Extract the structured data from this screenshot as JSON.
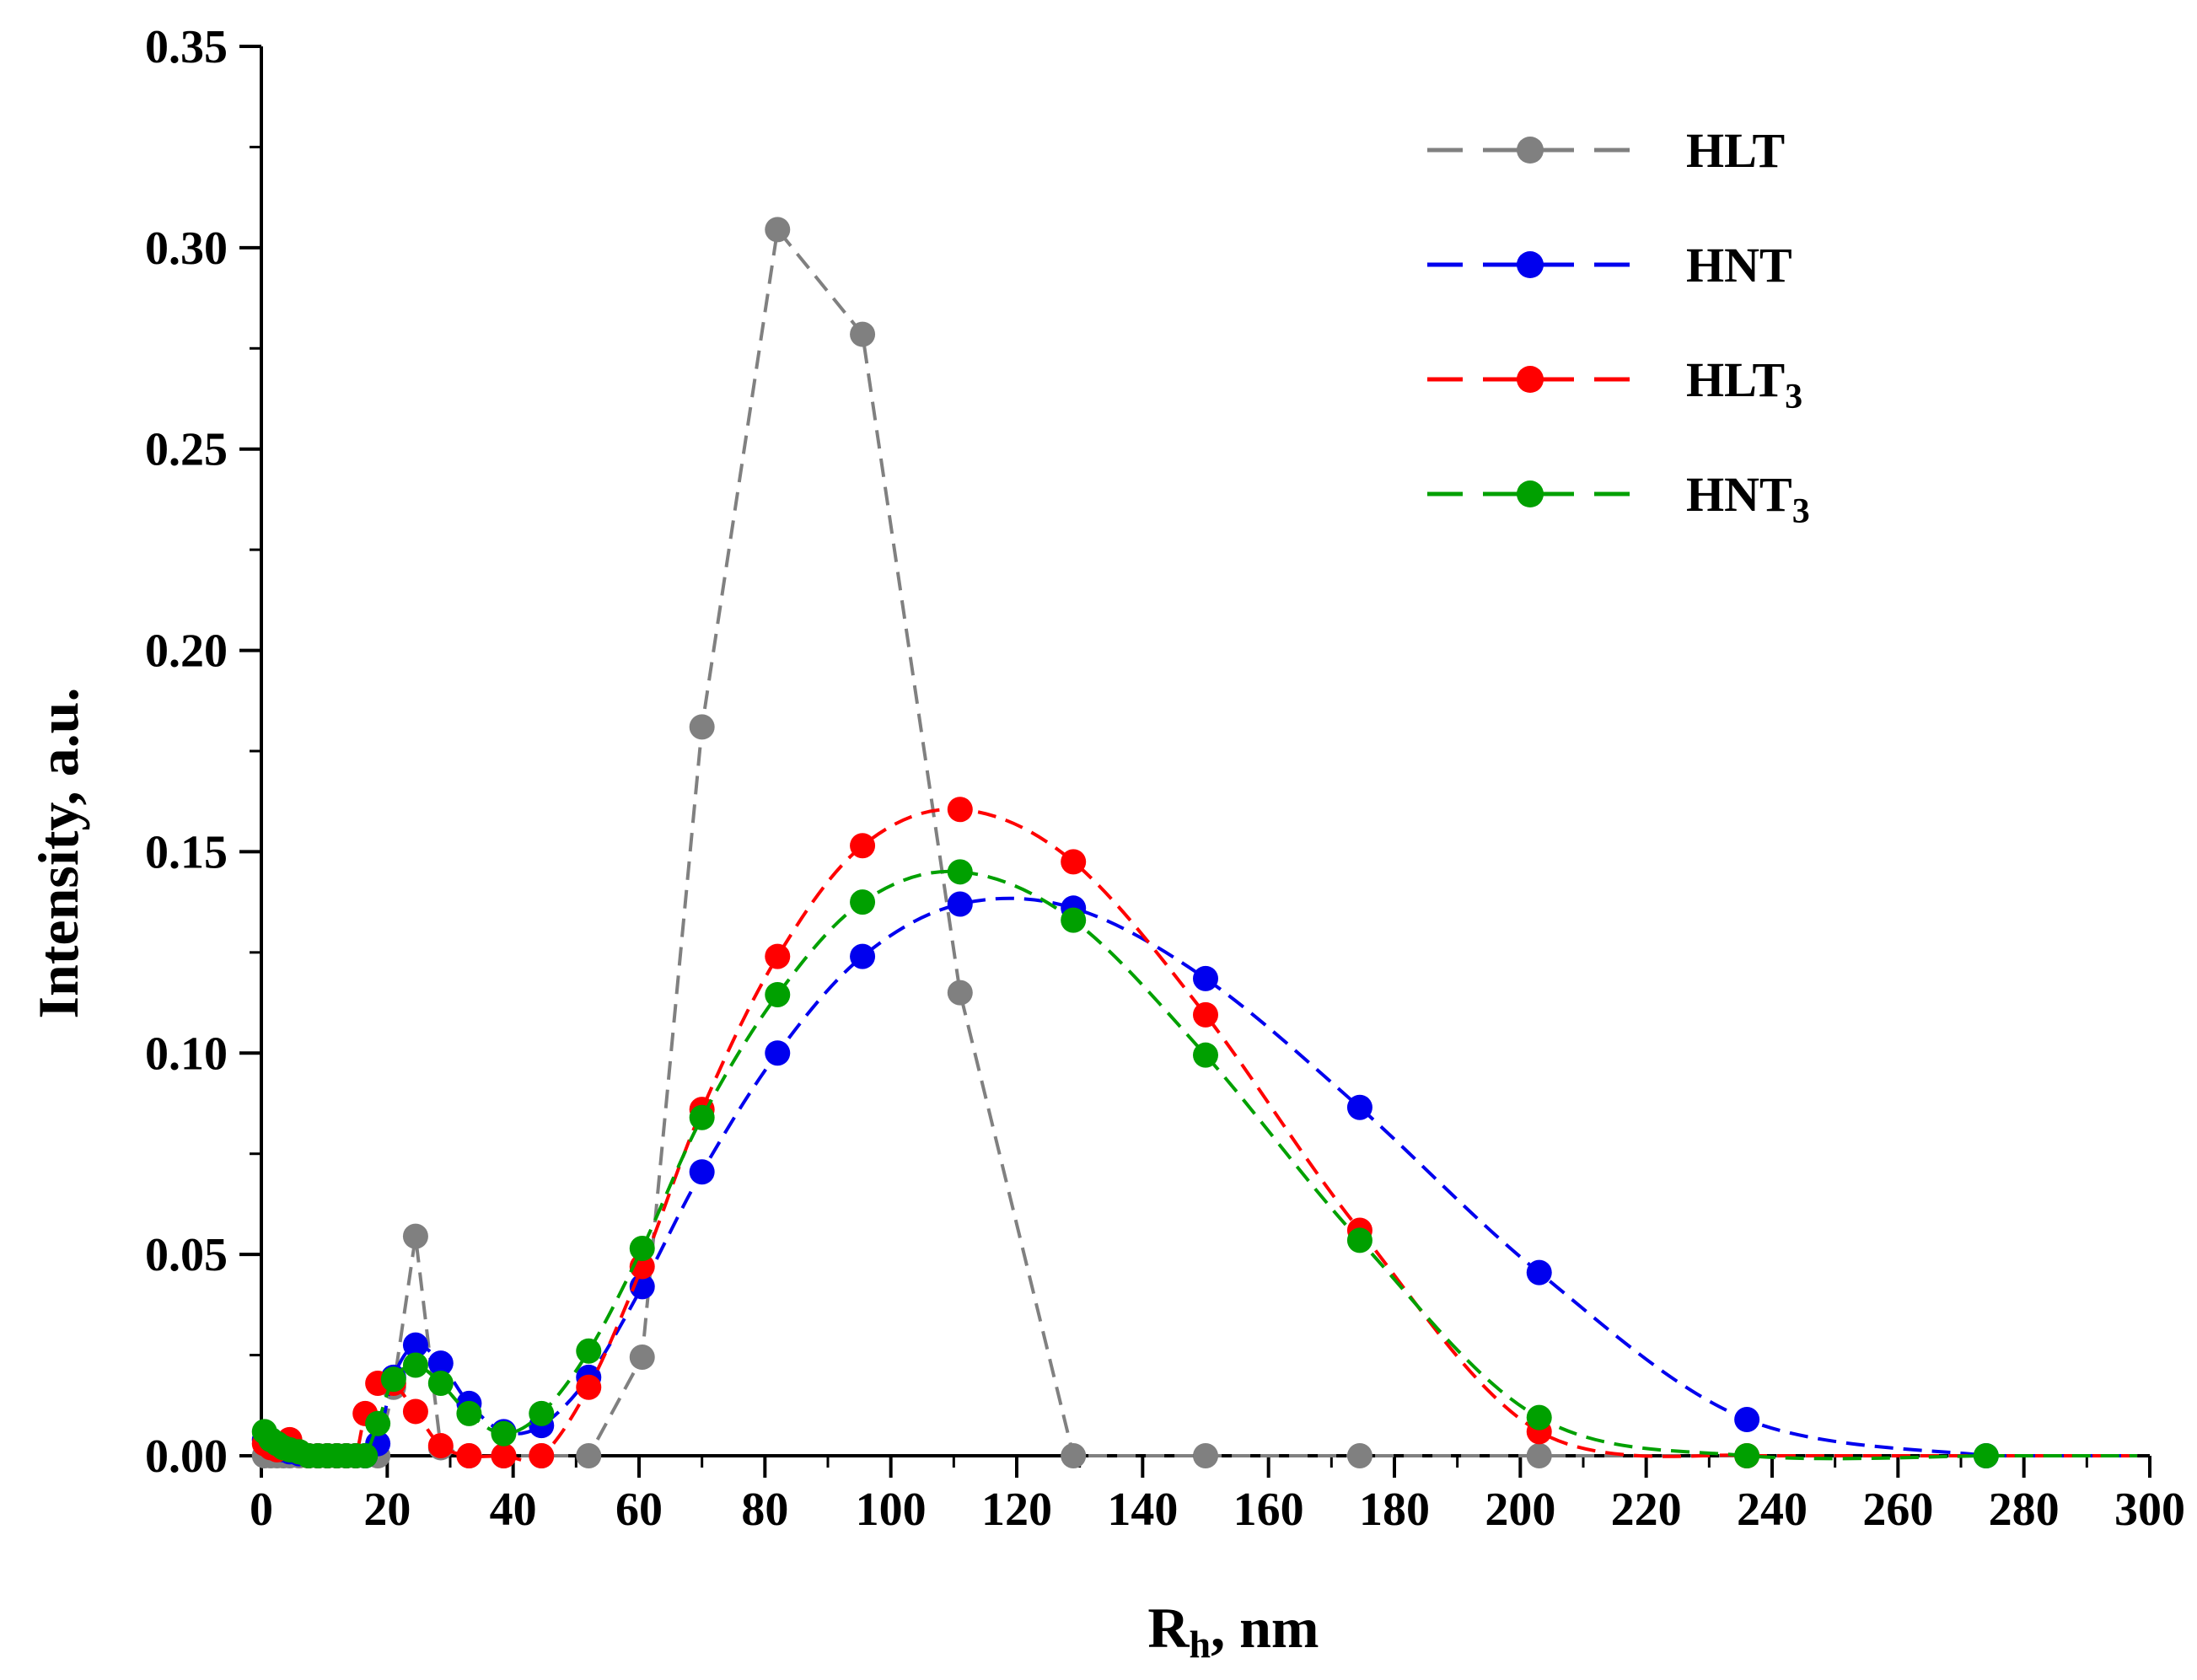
{
  "chart_data": {
    "type": "line",
    "xlabel_main": "R",
    "xlabel_sub": "h",
    "xlabel_rest": ", nm",
    "ylabel": "Intensity, a.u.",
    "xlim": [
      0,
      300
    ],
    "ylim": [
      0,
      0.35
    ],
    "x_ticks": [
      0,
      20,
      40,
      60,
      80,
      100,
      120,
      140,
      160,
      180,
      200,
      220,
      240,
      260,
      280,
      300
    ],
    "y_ticks": [
      "0.00",
      "0.05",
      "0.10",
      "0.15",
      "0.20",
      "0.25",
      "0.30",
      "0.35"
    ],
    "grid": false,
    "legend_position": "top-right",
    "series": [
      {
        "name": "HLT",
        "name_main": "HLT",
        "name_sub": "",
        "color": "#808080",
        "points": [
          [
            0.5,
            0
          ],
          [
            1.5,
            0
          ],
          [
            2.5,
            0
          ],
          [
            3.5,
            0
          ],
          [
            4.5,
            0
          ],
          [
            6,
            0
          ],
          [
            7.5,
            0
          ],
          [
            9,
            0
          ],
          [
            10.5,
            0
          ],
          [
            12,
            0
          ],
          [
            13.5,
            0
          ],
          [
            15,
            0
          ],
          [
            16.5,
            0
          ],
          [
            18.5,
            0
          ],
          [
            21,
            0.017
          ],
          [
            24.5,
            0.0545
          ],
          [
            28.5,
            0.002
          ],
          [
            33,
            0
          ],
          [
            38.5,
            0
          ],
          [
            44.5,
            0
          ],
          [
            52,
            0
          ],
          [
            60.5,
            0.0245
          ],
          [
            70,
            0.181
          ],
          [
            82,
            0.3045
          ],
          [
            95.5,
            0.2785
          ],
          [
            111,
            0.115
          ],
          [
            129,
            0
          ],
          [
            150,
            0
          ],
          [
            174.5,
            0
          ],
          [
            203,
            0
          ]
        ]
      },
      {
        "name": "HNT",
        "name_main": "HNT",
        "name_sub": "",
        "color": "#0000ee",
        "points": [
          [
            0.5,
            0.004
          ],
          [
            1.5,
            0.003
          ],
          [
            2.5,
            0.002
          ],
          [
            3.5,
            0.0015
          ],
          [
            4.5,
            0.001
          ],
          [
            6,
            0.0005
          ],
          [
            7.5,
            0
          ],
          [
            9,
            0
          ],
          [
            10.5,
            0
          ],
          [
            12,
            0
          ],
          [
            13.5,
            0
          ],
          [
            15,
            0
          ],
          [
            16.5,
            0
          ],
          [
            18.5,
            0.003
          ],
          [
            21,
            0.0195
          ],
          [
            24.5,
            0.0275
          ],
          [
            28.5,
            0.023
          ],
          [
            33,
            0.013
          ],
          [
            38.5,
            0.006
          ],
          [
            44.5,
            0.0075
          ],
          [
            52,
            0.0195
          ],
          [
            60.5,
            0.042
          ],
          [
            70,
            0.0705
          ],
          [
            82,
            0.1
          ],
          [
            95.5,
            0.124
          ],
          [
            111,
            0.137
          ],
          [
            129,
            0.136
          ],
          [
            150,
            0.1185
          ],
          [
            174.5,
            0.0865
          ],
          [
            203,
            0.0455
          ],
          [
            236,
            0.009
          ],
          [
            274,
            0
          ]
        ]
      },
      {
        "name": "HLT3",
        "name_main": "HLT",
        "name_sub": "3",
        "color": "#ff0000",
        "points": [
          [
            0.5,
            0.003
          ],
          [
            1.5,
            0.002
          ],
          [
            2.5,
            0.0015
          ],
          [
            3.5,
            0.002
          ],
          [
            4.5,
            0.004
          ],
          [
            6,
            0.001
          ],
          [
            7.5,
            0
          ],
          [
            9,
            0
          ],
          [
            10.5,
            0
          ],
          [
            12,
            0
          ],
          [
            13.5,
            0
          ],
          [
            15,
            0
          ],
          [
            16.5,
            0.0105
          ],
          [
            18.5,
            0.018
          ],
          [
            21,
            0.018
          ],
          [
            24.5,
            0.011
          ],
          [
            28.5,
            0.0025
          ],
          [
            33,
            0
          ],
          [
            38.5,
            0
          ],
          [
            44.5,
            0
          ],
          [
            52,
            0.017
          ],
          [
            60.5,
            0.047
          ],
          [
            70,
            0.086
          ],
          [
            82,
            0.124
          ],
          [
            95.5,
            0.1515
          ],
          [
            111,
            0.1605
          ],
          [
            129,
            0.1475
          ],
          [
            150,
            0.1095
          ],
          [
            174.5,
            0.056
          ],
          [
            203,
            0.006
          ],
          [
            236,
            0
          ]
        ]
      },
      {
        "name": "HNT3",
        "name_main": "HNT",
        "name_sub": "3",
        "color": "#00a000",
        "points": [
          [
            0.5,
            0.006
          ],
          [
            1.5,
            0.004
          ],
          [
            2.5,
            0.003
          ],
          [
            3.5,
            0.002
          ],
          [
            4.5,
            0.0015
          ],
          [
            6,
            0.001
          ],
          [
            7.5,
            0
          ],
          [
            9,
            0
          ],
          [
            10.5,
            0
          ],
          [
            12,
            0
          ],
          [
            13.5,
            0
          ],
          [
            15,
            0
          ],
          [
            16.5,
            0
          ],
          [
            18.5,
            0.008
          ],
          [
            21,
            0.019
          ],
          [
            24.5,
            0.0225
          ],
          [
            28.5,
            0.018
          ],
          [
            33,
            0.0105
          ],
          [
            38.5,
            0.0055
          ],
          [
            44.5,
            0.0105
          ],
          [
            52,
            0.026
          ],
          [
            60.5,
            0.0515
          ],
          [
            70,
            0.084
          ],
          [
            82,
            0.1145
          ],
          [
            95.5,
            0.1375
          ],
          [
            111,
            0.145
          ],
          [
            129,
            0.133
          ],
          [
            150,
            0.0995
          ],
          [
            174.5,
            0.0535
          ],
          [
            203,
            0.0095
          ],
          [
            236,
            0
          ],
          [
            274,
            0
          ]
        ]
      }
    ]
  }
}
